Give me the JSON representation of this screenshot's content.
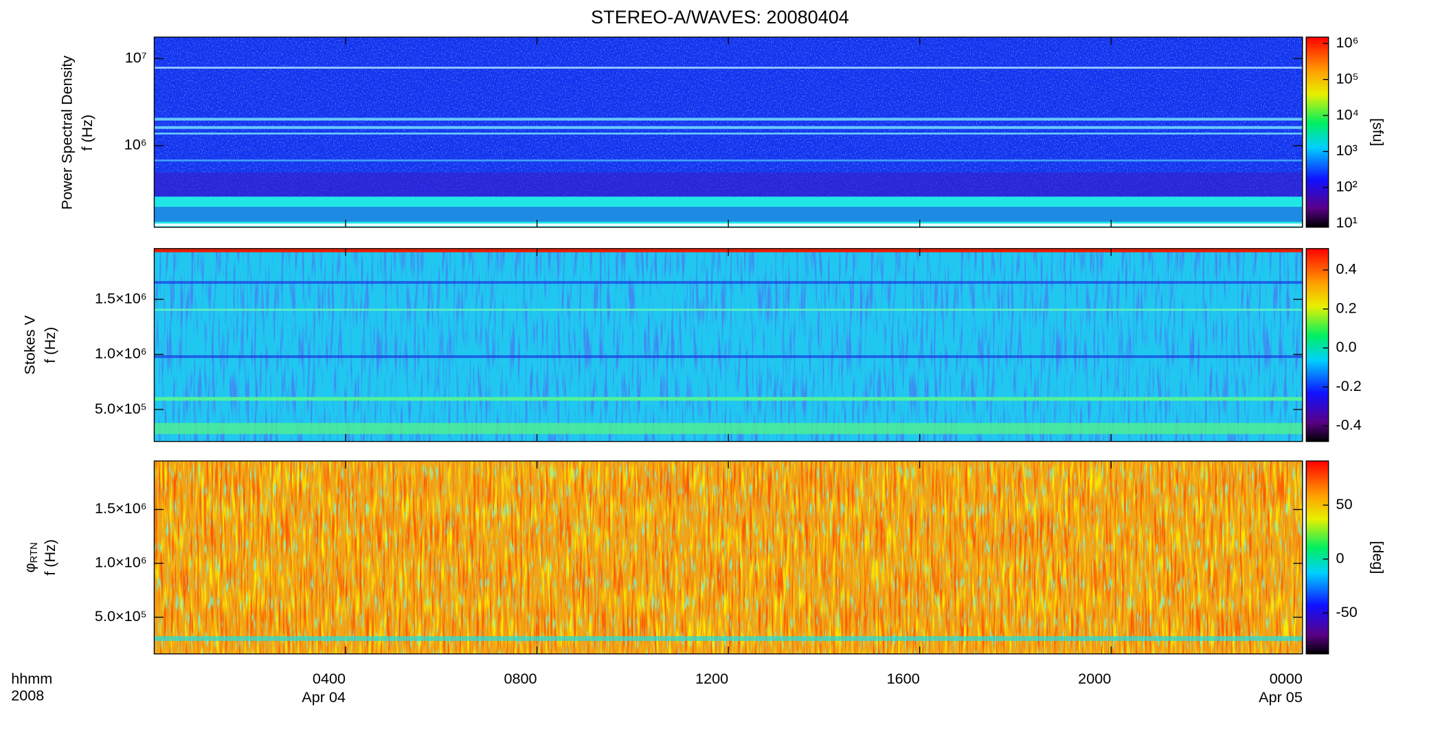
{
  "title": "STEREO-A/WAVES: 20080404",
  "x_axis": {
    "xlim": [
      0,
      24
    ],
    "xticks": [
      {
        "value": 4,
        "label": "0400"
      },
      {
        "value": 8,
        "label": "0800"
      },
      {
        "value": 12,
        "label": "1200"
      },
      {
        "value": 16,
        "label": "1600"
      },
      {
        "value": 20,
        "label": "2000"
      },
      {
        "value": 24,
        "label": "0000"
      }
    ],
    "date_labels": [
      {
        "value": 4,
        "label": "Apr 04"
      },
      {
        "value": 24,
        "label": "Apr 05"
      }
    ],
    "units": [
      "hhmm",
      "2008"
    ]
  },
  "chart_data": [
    {
      "type": "heatmap",
      "ylabel": [
        "Power Spectral Density",
        "f (Hz)"
      ],
      "yscale": "log",
      "ylim": [
        116000,
        17600000
      ],
      "yticks": [
        {
          "value": 1000000,
          "label": "10⁶"
        },
        {
          "value": 10000000,
          "label": "10⁷"
        }
      ],
      "colorbar": {
        "scale": "log",
        "clim": [
          7.9,
          1500000
        ],
        "label": "[sfu]",
        "ticks": [
          {
            "value": 10,
            "label": "10¹"
          },
          {
            "value": 100,
            "label": "10²"
          },
          {
            "value": 1000,
            "label": "10³"
          },
          {
            "value": 10000,
            "label": "10⁴"
          },
          {
            "value": 100000,
            "label": "10⁵"
          },
          {
            "value": 1000000,
            "label": "10⁶"
          }
        ]
      }
    },
    {
      "type": "heatmap",
      "ylabel": [
        "Stokes V",
        "f (Hz)"
      ],
      "yscale": "linear",
      "ylim": [
        210000,
        1960000
      ],
      "yticks": [
        {
          "value": 500000,
          "label": "5.0×10⁵"
        },
        {
          "value": 1000000,
          "label": "1.0×10⁶"
        },
        {
          "value": 1500000,
          "label": "1.5×10⁶"
        }
      ],
      "colorbar": {
        "scale": "linear",
        "clim": [
          -0.48,
          0.51
        ],
        "ticks": [
          {
            "value": -0.4,
            "label": "-0.4"
          },
          {
            "value": -0.2,
            "label": "-0.2"
          },
          {
            "value": 0,
            "label": "0.0"
          },
          {
            "value": 0.2,
            "label": "0.2"
          },
          {
            "value": 0.4,
            "label": "0.4"
          }
        ]
      }
    },
    {
      "type": "heatmap",
      "ylabel": [
        {
          "text": "φ",
          "sub": "RTN"
        },
        "f (Hz)"
      ],
      "yscale": "linear",
      "ylim": [
        160000,
        1950000
      ],
      "yticks": [
        {
          "value": 500000,
          "label": "5.0×10⁵"
        },
        {
          "value": 1000000,
          "label": "1.0×10⁶"
        },
        {
          "value": 1500000,
          "label": "1.5×10⁶"
        }
      ],
      "colorbar": {
        "scale": "linear",
        "clim": [
          -88,
          91
        ],
        "label": "[deg]",
        "ticks": [
          -50,
          0,
          50
        ]
      }
    }
  ]
}
